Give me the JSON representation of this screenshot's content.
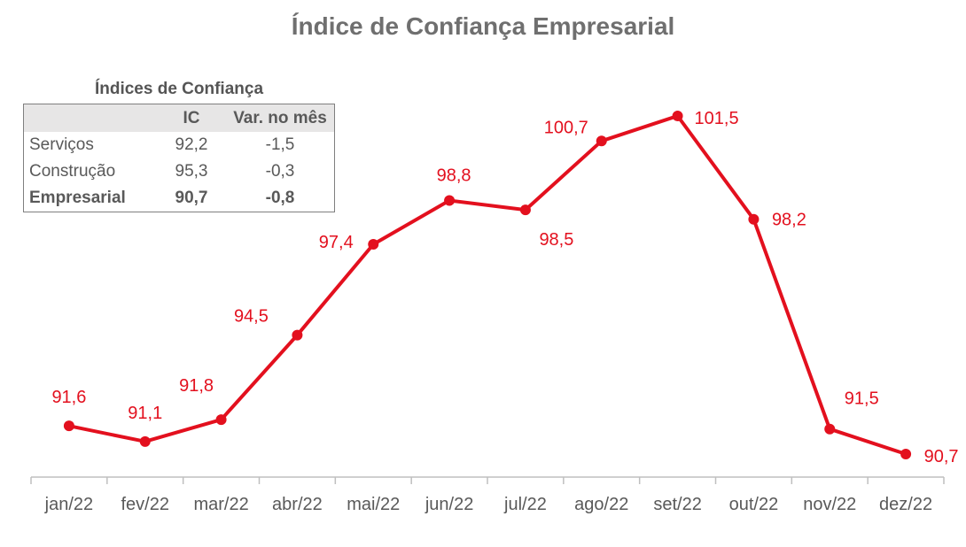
{
  "title": "Índice de Confiança Empresarial",
  "inset_table": {
    "title": "Índices de Confiança",
    "headers": [
      "",
      "IC",
      "Var. no mês"
    ],
    "rows": [
      {
        "label": "Serviços",
        "ic": "92,2",
        "var": "-1,5",
        "bold": false
      },
      {
        "label": "Construção",
        "ic": "95,3",
        "var": "-0,3",
        "bold": false
      },
      {
        "label": "Empresarial",
        "ic": "90,7",
        "var": "-0,8",
        "bold": true
      }
    ]
  },
  "colors": {
    "series": "#e3101e",
    "title": "#6f6f6f",
    "axis": "#bfbfbf",
    "tick_label": "#595959",
    "table_header_bg": "#e7e6e6"
  },
  "chart_data": {
    "type": "line",
    "title": "Índice de Confiança Empresarial",
    "xlabel": "",
    "ylabel": "",
    "categories": [
      "jan/22",
      "fev/22",
      "mar/22",
      "abr/22",
      "mai/22",
      "jun/22",
      "jul/22",
      "ago/22",
      "set/22",
      "out/22",
      "nov/22",
      "dez/22"
    ],
    "series": [
      {
        "values": [
          91.6,
          91.1,
          91.8,
          94.5,
          97.4,
          98.8,
          98.5,
          100.7,
          101.5,
          98.2,
          91.5,
          90.7
        ],
        "labels": [
          "91,6",
          "91,1",
          "91,8",
          "94,5",
          "97,4",
          "98,8",
          "98,5",
          "100,7",
          "101,5",
          "98,2",
          "91,5",
          "90,7"
        ]
      }
    ],
    "grid": false,
    "legend": "none",
    "markers": true
  }
}
